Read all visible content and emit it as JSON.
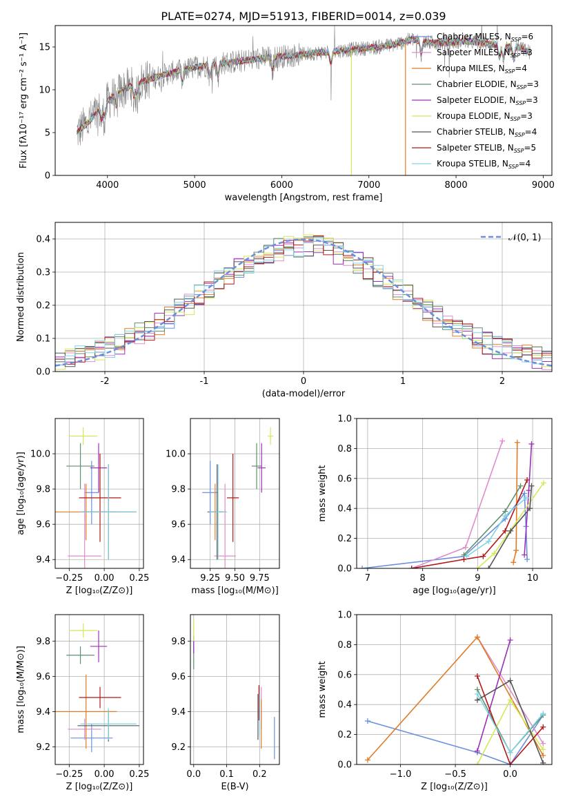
{
  "title": "PLATE=0274, MJD=51913, FIBERID=0014, z=0.039",
  "colors": {
    "Chabrier MILES": "#6a8fdc",
    "Salpeter MILES": "#e18ccc",
    "Kroupa MILES": "#e07b22",
    "Chabrier ELODIE": "#5f8f6f",
    "Salpeter ELODIE": "#9b30b8",
    "Kroupa ELODIE": "#d4e85a",
    "Chabrier STELIB": "#555555",
    "Salpeter STELIB": "#b01818",
    "Kroupa STELIB": "#80d4e4",
    "data": "#808080",
    "normal": "#6a8fdc"
  },
  "chart_data": [
    {
      "type": "line",
      "name": "spectrum",
      "xlabel": "wavelength [Angstrom, rest frame]",
      "ylabel": "Flux [fλ10⁻¹⁷ erg cm⁻² s⁻¹ A⁻¹]",
      "xlim": [
        3400,
        9100
      ],
      "ylim": [
        0,
        17.5
      ],
      "xticks": [
        4000,
        5000,
        6000,
        7000,
        8000,
        9000
      ],
      "yticks": [
        0,
        5,
        10,
        15
      ],
      "grid": false,
      "legend_position": "top-right",
      "legend": [
        {
          "label": "Chabrier MILES, N",
          "sub": "SSP",
          "tail": "=6"
        },
        {
          "label": "Salpeter MILES, N",
          "sub": "SSP",
          "tail": "=3"
        },
        {
          "label": "Kroupa MILES, N",
          "sub": "SSP",
          "tail": "=4"
        },
        {
          "label": "Chabrier ELODIE, N",
          "sub": "SSP",
          "tail": "=3"
        },
        {
          "label": "Salpeter ELODIE, N",
          "sub": "SSP",
          "tail": "=3"
        },
        {
          "label": "Kroupa ELODIE, N",
          "sub": "SSP",
          "tail": "=3"
        },
        {
          "label": "Chabrier STELIB, N",
          "sub": "SSP",
          "tail": "=4"
        },
        {
          "label": "Salpeter STELIB, N",
          "sub": "SSP",
          "tail": "=5"
        },
        {
          "label": "Kroupa STELIB, N",
          "sub": "SSP",
          "tail": "=4"
        }
      ],
      "continuum": {
        "x": [
          3650,
          3800,
          3950,
          4100,
          4300,
          4500,
          4700,
          4900,
          5100,
          5300,
          5500,
          5700,
          5900,
          6100,
          6300,
          6500,
          6700,
          6900,
          7100,
          7300,
          7500,
          7700,
          7900,
          8100,
          8300,
          8500,
          8700,
          8850
        ],
        "y": [
          5.0,
          6.4,
          8.2,
          9.6,
          10.6,
          11.3,
          11.9,
          12.4,
          12.8,
          13.1,
          13.3,
          13.6,
          13.8,
          14.0,
          14.2,
          14.4,
          14.6,
          14.8,
          15.0,
          15.3,
          15.9,
          15.5,
          15.5,
          15.7,
          15.5,
          15.2,
          15.0,
          14.4
        ]
      },
      "gaps": [
        {
          "series": "Kroupa ELODIE",
          "x": 6800
        },
        {
          "series": "Kroupa MILES",
          "x": 7420
        }
      ]
    },
    {
      "type": "histogram",
      "name": "residuals",
      "xlabel": "(data-model)/error",
      "ylabel": "Normed distribution",
      "xlim": [
        -2.5,
        2.5
      ],
      "ylim": [
        0,
        0.45
      ],
      "xticks": [
        -2,
        -1,
        0,
        1,
        2
      ],
      "yticks": [
        0.0,
        0.1,
        0.2,
        0.3,
        0.4
      ],
      "grid": true,
      "bin_width": 0.1,
      "legend_position": "top-right",
      "legend": "𝒩(0, 1)",
      "normal_mean": 0,
      "normal_sigma": 1
    },
    {
      "type": "errorbar",
      "name": "age_vs_Z",
      "xlabel": "Z [log₁₀(Z/Z⊙)]",
      "ylabel": "age  [log₁₀(age/yr)]",
      "xlim": [
        -0.35,
        0.28
      ],
      "ylim": [
        9.35,
        10.2
      ],
      "xticks": [
        -0.25,
        0.0,
        0.25
      ],
      "xticklabels": [
        "−0.25",
        "0.00",
        "0.25"
      ],
      "yticks": [
        9.4,
        9.6,
        9.8,
        10.0
      ],
      "grid": true,
      "points": [
        {
          "series": "Chabrier MILES",
          "x": -0.09,
          "xerr": 0.05,
          "y": 9.78,
          "yerr": 0.18
        },
        {
          "series": "Salpeter MILES",
          "x": -0.14,
          "xerr": 0.12,
          "y": 9.42,
          "yerr": 0.41
        },
        {
          "series": "Kroupa MILES",
          "x": -0.13,
          "xerr": 0.22,
          "y": 9.67,
          "yerr": 0.16
        },
        {
          "series": "Chabrier ELODIE",
          "x": -0.17,
          "xerr": 0.1,
          "y": 9.93,
          "yerr": 0.13
        },
        {
          "series": "Salpeter ELODIE",
          "x": -0.04,
          "xerr": 0.06,
          "y": 9.92,
          "yerr": 0.14
        },
        {
          "series": "Kroupa ELODIE",
          "x": -0.15,
          "xerr": 0.1,
          "y": 10.1,
          "yerr": 0.05
        },
        {
          "series": "Chabrier STELIB",
          "x": 0.03,
          "xerr": 0.2,
          "y": 9.67,
          "yerr": 0.27
        },
        {
          "series": "Salpeter STELIB",
          "x": -0.03,
          "xerr": 0.15,
          "y": 9.75,
          "yerr": 0.25
        },
        {
          "series": "Kroupa STELIB",
          "x": 0.03,
          "xerr": 0.2,
          "y": 9.67,
          "yerr": 0.27
        }
      ]
    },
    {
      "type": "errorbar",
      "name": "age_vs_mass",
      "xlabel": "mass [log₁₀(M/M⊙)]",
      "ylabel": "",
      "xlim": [
        9.05,
        9.95
      ],
      "ylim": [
        9.35,
        10.2
      ],
      "xticks": [
        9.25,
        9.5,
        9.75
      ],
      "xticklabels": [
        "9.25",
        "9.50",
        "9.75"
      ],
      "yticks": [
        9.4,
        9.6,
        9.8,
        10.0
      ],
      "grid": true,
      "points": [
        {
          "series": "Chabrier MILES",
          "x": 9.25,
          "xerr": 0.08,
          "y": 9.78,
          "yerr": 0.18
        },
        {
          "series": "Salpeter MILES",
          "x": 9.4,
          "xerr": 0.11,
          "y": 9.42,
          "yerr": 0.41
        },
        {
          "series": "Kroupa MILES",
          "x": 9.3,
          "xerr": 0.08,
          "y": 9.67,
          "yerr": 0.16
        },
        {
          "series": "Chabrier ELODIE",
          "x": 9.72,
          "xerr": 0.05,
          "y": 9.93,
          "yerr": 0.13
        },
        {
          "series": "Salpeter ELODIE",
          "x": 9.77,
          "xerr": 0.04,
          "y": 9.92,
          "yerr": 0.14
        },
        {
          "series": "Kroupa ELODIE",
          "x": 9.86,
          "xerr": 0.03,
          "y": 10.1,
          "yerr": 0.05
        },
        {
          "series": "Chabrier STELIB",
          "x": 9.32,
          "xerr": 0.09,
          "y": 9.67,
          "yerr": 0.27
        },
        {
          "series": "Salpeter STELIB",
          "x": 9.48,
          "xerr": 0.06,
          "y": 9.75,
          "yerr": 0.25
        },
        {
          "series": "Kroupa STELIB",
          "x": 9.33,
          "xerr": 0.09,
          "y": 9.67,
          "yerr": 0.27
        }
      ]
    },
    {
      "type": "line",
      "name": "mass_weight_vs_age",
      "xlabel": "age  [log₁₀(age/yr)]",
      "ylabel": "mass weight",
      "xlim": [
        6.8,
        10.35
      ],
      "ylim": [
        0,
        1
      ],
      "xticks": [
        7,
        8,
        9,
        10
      ],
      "yticks": [
        0.0,
        0.2,
        0.4,
        0.6,
        0.8,
        1.0
      ],
      "grid": true,
      "series": [
        {
          "name": "Chabrier MILES",
          "x": [
            6.9,
            8.75,
            9.5,
            9.85,
            9.88,
            9.9
          ],
          "y": [
            0.0,
            0.08,
            0.33,
            0.5,
            0.28,
            0.06
          ]
        },
        {
          "name": "Salpeter MILES",
          "x": [
            7.8,
            8.78,
            9.45
          ],
          "y": [
            0.0,
            0.14,
            0.85
          ]
        },
        {
          "name": "Kroupa MILES",
          "x": [
            9.65,
            9.7,
            9.72
          ],
          "y": [
            0.04,
            0.12,
            0.84
          ]
        },
        {
          "name": "Chabrier ELODIE",
          "x": [
            8.75,
            9.5,
            9.78
          ],
          "y": [
            0.09,
            0.38,
            0.55
          ]
        },
        {
          "name": "Salpeter ELODIE",
          "x": [
            9.85,
            9.93,
            9.98
          ],
          "y": [
            0.09,
            0.52,
            0.83
          ]
        },
        {
          "name": "Kroupa ELODIE",
          "x": [
            9.0,
            9.3,
            10.2
          ],
          "y": [
            0.0,
            0.1,
            0.57
          ]
        },
        {
          "name": "Chabrier STELIB",
          "x": [
            9.2,
            9.6,
            9.95,
            9.98
          ],
          "y": [
            0.0,
            0.25,
            0.4,
            0.55
          ]
        },
        {
          "name": "Salpeter STELIB",
          "x": [
            7.8,
            8.75,
            9.1,
            9.5,
            9.9
          ],
          "y": [
            0.0,
            0.06,
            0.08,
            0.25,
            0.59
          ]
        },
        {
          "name": "Kroupa STELIB",
          "x": [
            8.8,
            9.2,
            9.5,
            9.88
          ],
          "y": [
            0.08,
            0.18,
            0.35,
            0.47
          ]
        }
      ]
    },
    {
      "type": "errorbar",
      "name": "mass_vs_Z",
      "xlabel": "Z [log₁₀(Z/Z⊙)]",
      "ylabel": "mass [log₁₀(M/M⊙)]",
      "xlim": [
        -0.35,
        0.28
      ],
      "ylim": [
        9.1,
        9.95
      ],
      "xticks": [
        -0.25,
        0.0,
        0.25
      ],
      "xticklabels": [
        "−0.25",
        "0.00",
        "0.25"
      ],
      "yticks": [
        9.2,
        9.4,
        9.6,
        9.8
      ],
      "grid": true,
      "points": [
        {
          "series": "Chabrier MILES",
          "x": -0.09,
          "xerr": 0.15,
          "y": 9.25,
          "yerr": 0.08
        },
        {
          "series": "Salpeter MILES",
          "x": -0.14,
          "xerr": 0.12,
          "y": 9.3,
          "yerr": 0.06
        },
        {
          "series": "Kroupa MILES",
          "x": -0.13,
          "xerr": 0.22,
          "y": 9.4,
          "yerr": 0.21
        },
        {
          "series": "Chabrier ELODIE",
          "x": -0.17,
          "xerr": 0.1,
          "y": 9.72,
          "yerr": 0.05
        },
        {
          "series": "Salpeter ELODIE",
          "x": -0.04,
          "xerr": 0.06,
          "y": 9.77,
          "yerr": 0.09
        },
        {
          "series": "Kroupa ELODIE",
          "x": -0.15,
          "xerr": 0.1,
          "y": 9.86,
          "yerr": 0.04
        },
        {
          "series": "Chabrier STELIB",
          "x": 0.03,
          "xerr": 0.22,
          "y": 9.32,
          "yerr": 0.09
        },
        {
          "series": "Salpeter STELIB",
          "x": -0.03,
          "xerr": 0.15,
          "y": 9.48,
          "yerr": 0.06
        },
        {
          "series": "Kroupa STELIB",
          "x": 0.03,
          "xerr": 0.2,
          "y": 9.33,
          "yerr": 0.09
        }
      ]
    },
    {
      "type": "errorbar",
      "name": "mass_vs_EBV",
      "xlabel": "E(B-V)",
      "ylabel": "",
      "xlim": [
        -0.01,
        0.26
      ],
      "ylim": [
        9.1,
        9.95
      ],
      "xticks": [
        0.0,
        0.1,
        0.2
      ],
      "xticklabels": [
        "0.0",
        "0.1",
        "0.2"
      ],
      "yticks": [
        9.2,
        9.4,
        9.6,
        9.8
      ],
      "grid": true,
      "points": [
        {
          "series": "Chabrier MILES",
          "x": 0.245,
          "xerr": 0.0,
          "y": 9.25,
          "yerr": 0.12
        },
        {
          "series": "Salpeter MILES",
          "x": 0.205,
          "xerr": 0.0,
          "y": 9.42,
          "yerr": 0.12
        },
        {
          "series": "Kroupa MILES",
          "x": 0.205,
          "xerr": 0.0,
          "y": 9.33,
          "yerr": 0.14
        },
        {
          "series": "Chabrier ELODIE",
          "x": 0.0,
          "xerr": 0.0,
          "y": 9.72,
          "yerr": 0.08
        },
        {
          "series": "Salpeter ELODIE",
          "x": 0.0,
          "xerr": 0.0,
          "y": 9.78,
          "yerr": 0.05
        },
        {
          "series": "Kroupa ELODIE",
          "x": 0.0,
          "xerr": 0.0,
          "y": 9.86,
          "yerr": 0.06
        },
        {
          "series": "Chabrier STELIB",
          "x": 0.195,
          "xerr": 0.0,
          "y": 9.37,
          "yerr": 0.13
        },
        {
          "series": "Salpeter STELIB",
          "x": 0.198,
          "xerr": 0.0,
          "y": 9.45,
          "yerr": 0.1
        },
        {
          "series": "Kroupa STELIB",
          "x": 0.2,
          "xerr": 0.0,
          "y": 9.38,
          "yerr": 0.12
        }
      ]
    },
    {
      "type": "line",
      "name": "mass_weight_vs_Z",
      "xlabel": "Z [log₁₀(Z/Z⊙)]",
      "ylabel": "mass weight",
      "xlim": [
        -1.4,
        0.38
      ],
      "ylim": [
        0,
        1
      ],
      "xticks": [
        -1.0,
        -0.5,
        0.0
      ],
      "xticklabels": [
        "−1.0",
        "−0.5",
        "0.0"
      ],
      "yticks": [
        0.0,
        0.2,
        0.4,
        0.6,
        0.8,
        1.0
      ],
      "grid": true,
      "series": [
        {
          "name": "Chabrier MILES",
          "x": [
            -1.3,
            -0.3,
            0.0,
            0.3
          ],
          "y": [
            0.29,
            0.08,
            0.0,
            0.33
          ]
        },
        {
          "name": "Salpeter MILES",
          "x": [
            -0.3,
            0.3
          ],
          "y": [
            0.85,
            0.14
          ]
        },
        {
          "name": "Kroupa MILES",
          "x": [
            -1.3,
            -0.3,
            0.3
          ],
          "y": [
            0.03,
            0.85,
            0.06
          ]
        },
        {
          "name": "Chabrier ELODIE",
          "x": [
            -0.3,
            0.0,
            0.3
          ],
          "y": [
            0.5,
            0.08,
            0.33
          ]
        },
        {
          "name": "Salpeter ELODIE",
          "x": [
            -0.3,
            0.0
          ],
          "y": [
            0.09,
            0.83
          ]
        },
        {
          "name": "Kroupa ELODIE",
          "x": [
            -0.3,
            0.0,
            0.3
          ],
          "y": [
            0.0,
            0.43,
            0.1
          ]
        },
        {
          "name": "Chabrier STELIB",
          "x": [
            -0.3,
            0.0,
            0.3
          ],
          "y": [
            0.43,
            0.56,
            0.01
          ]
        },
        {
          "name": "Salpeter STELIB",
          "x": [
            -0.3,
            0.0,
            0.3
          ],
          "y": [
            0.59,
            0.0,
            0.25
          ]
        },
        {
          "name": "Kroupa STELIB",
          "x": [
            -0.3,
            0.0,
            0.3
          ],
          "y": [
            0.47,
            0.08,
            0.34
          ]
        }
      ]
    }
  ]
}
